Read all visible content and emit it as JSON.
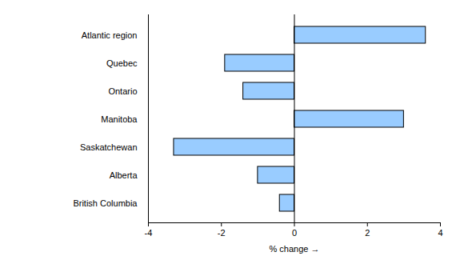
{
  "chart_data": {
    "type": "bar",
    "orientation": "horizontal",
    "categories": [
      "Atlantic region",
      "Quebec",
      "Ontario",
      "Manitoba",
      "Saskatchewan",
      "Alberta",
      "British Columbia"
    ],
    "values": [
      3.6,
      -1.9,
      -1.4,
      3.0,
      -3.3,
      -1.0,
      -0.4
    ],
    "color": "#99ccff",
    "xlabel": "% change",
    "xlim": [
      -4,
      4
    ],
    "xticks": [
      -4,
      -2,
      0,
      2,
      4
    ],
    "grid": false
  }
}
